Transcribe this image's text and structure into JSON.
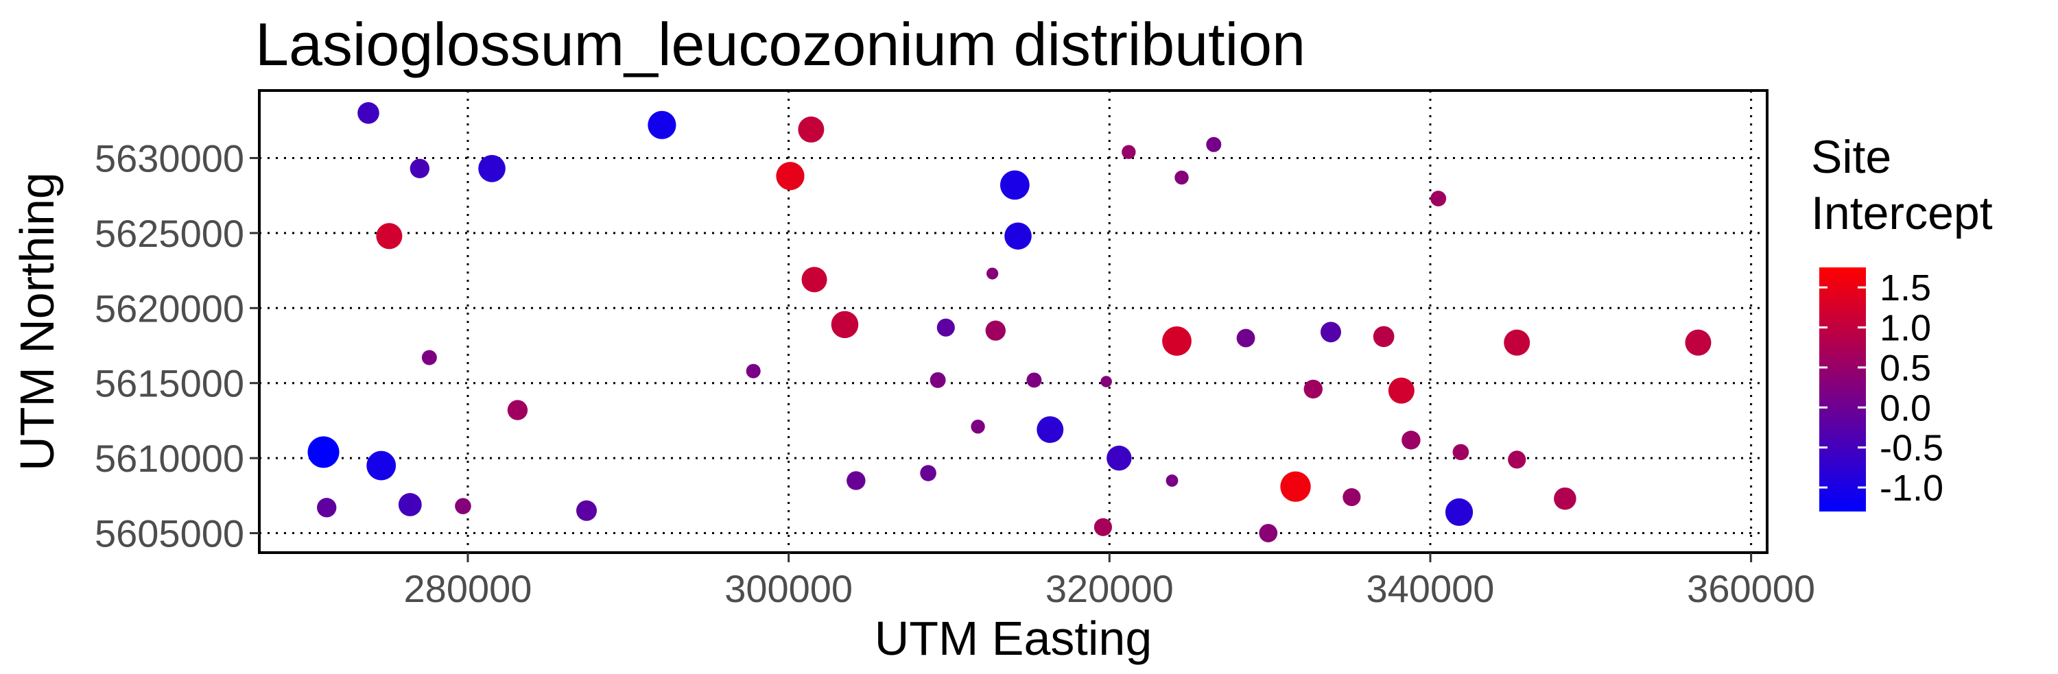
{
  "chart_data": {
    "type": "scatter",
    "title": "Lasioglossum_leucozonium distribution",
    "xlabel": "UTM Easting",
    "ylabel": "UTM Northing",
    "xlim": [
      267000,
      361000
    ],
    "ylim": [
      5603700,
      5634500
    ],
    "x_ticks": [
      280000,
      300000,
      320000,
      340000,
      360000
    ],
    "y_ticks": [
      5605000,
      5610000,
      5615000,
      5620000,
      5625000,
      5630000
    ],
    "x_tick_labels": [
      "280000",
      "300000",
      "320000",
      "340000",
      "360000"
    ],
    "y_tick_labels": [
      "5605000",
      "5610000",
      "5615000",
      "5620000",
      "5625000",
      "5630000"
    ],
    "grid": "dotted",
    "legend": {
      "title_lines": [
        "Site",
        "Intercept"
      ],
      "position": "right",
      "min": -1.3,
      "max": 1.75,
      "ticks": [
        1.5,
        1.0,
        0.5,
        0.0,
        -0.5,
        -1.0
      ],
      "tick_labels": [
        "1.5",
        "1.0",
        "0.5",
        "0.0",
        "-0.5",
        "-1.0"
      ],
      "colors": [
        "#0000ff",
        "#ff0000"
      ]
    },
    "points": [
      {
        "x": 273800,
        "y": 5633000,
        "v": -0.55,
        "size": 0.55
      },
      {
        "x": 277000,
        "y": 5629300,
        "v": -0.45,
        "size": 0.45
      },
      {
        "x": 281500,
        "y": 5629300,
        "v": -0.8,
        "size": 0.8
      },
      {
        "x": 292100,
        "y": 5632200,
        "v": -1.1,
        "size": 0.85
      },
      {
        "x": 301400,
        "y": 5631900,
        "v": 1.05,
        "size": 0.75
      },
      {
        "x": 300100,
        "y": 5628800,
        "v": 1.45,
        "size": 0.85
      },
      {
        "x": 314100,
        "y": 5628200,
        "v": -1.0,
        "size": 0.9
      },
      {
        "x": 321200,
        "y": 5630400,
        "v": 0.5,
        "size": 0.2
      },
      {
        "x": 326500,
        "y": 5630900,
        "v": 0.1,
        "size": 0.25
      },
      {
        "x": 324500,
        "y": 5628700,
        "v": 0.3,
        "size": 0.2
      },
      {
        "x": 340500,
        "y": 5627300,
        "v": 0.6,
        "size": 0.28
      },
      {
        "x": 275100,
        "y": 5624800,
        "v": 1.2,
        "size": 0.75
      },
      {
        "x": 314300,
        "y": 5624800,
        "v": -0.95,
        "size": 0.8
      },
      {
        "x": 301600,
        "y": 5621900,
        "v": 1.1,
        "size": 0.72
      },
      {
        "x": 312700,
        "y": 5622300,
        "v": 0.3,
        "size": 0.1
      },
      {
        "x": 303500,
        "y": 5618900,
        "v": 1.05,
        "size": 0.8
      },
      {
        "x": 309800,
        "y": 5618700,
        "v": -0.2,
        "size": 0.38
      },
      {
        "x": 312900,
        "y": 5618500,
        "v": 0.6,
        "size": 0.48
      },
      {
        "x": 324200,
        "y": 5617800,
        "v": 1.25,
        "size": 0.9
      },
      {
        "x": 328500,
        "y": 5618000,
        "v": 0.05,
        "size": 0.4
      },
      {
        "x": 333800,
        "y": 5618400,
        "v": -0.3,
        "size": 0.5
      },
      {
        "x": 337100,
        "y": 5618100,
        "v": 0.9,
        "size": 0.52
      },
      {
        "x": 345400,
        "y": 5617700,
        "v": 1.05,
        "size": 0.75
      },
      {
        "x": 356700,
        "y": 5617700,
        "v": 1.0,
        "size": 0.75
      },
      {
        "x": 277600,
        "y": 5616700,
        "v": 0.2,
        "size": 0.25
      },
      {
        "x": 297800,
        "y": 5615800,
        "v": 0.15,
        "size": 0.22
      },
      {
        "x": 309300,
        "y": 5615200,
        "v": 0.2,
        "size": 0.28
      },
      {
        "x": 315300,
        "y": 5615200,
        "v": 0.2,
        "size": 0.25
      },
      {
        "x": 319800,
        "y": 5615100,
        "v": 0.3,
        "size": 0.08
      },
      {
        "x": 332700,
        "y": 5614600,
        "v": 0.6,
        "size": 0.42
      },
      {
        "x": 338200,
        "y": 5614500,
        "v": 1.2,
        "size": 0.75
      },
      {
        "x": 283100,
        "y": 5613200,
        "v": 0.6,
        "size": 0.48
      },
      {
        "x": 311800,
        "y": 5612100,
        "v": 0.2,
        "size": 0.2
      },
      {
        "x": 316300,
        "y": 5611900,
        "v": -0.8,
        "size": 0.78
      },
      {
        "x": 338800,
        "y": 5611200,
        "v": 0.55,
        "size": 0.42
      },
      {
        "x": 271000,
        "y": 5610400,
        "v": -1.3,
        "size": 1.0
      },
      {
        "x": 274600,
        "y": 5609500,
        "v": -1.05,
        "size": 0.9
      },
      {
        "x": 320600,
        "y": 5610000,
        "v": -0.6,
        "size": 0.7
      },
      {
        "x": 341900,
        "y": 5610400,
        "v": 0.6,
        "size": 0.3
      },
      {
        "x": 345400,
        "y": 5609900,
        "v": 0.7,
        "size": 0.38
      },
      {
        "x": 304200,
        "y": 5608500,
        "v": -0.05,
        "size": 0.42
      },
      {
        "x": 308700,
        "y": 5609000,
        "v": -0.05,
        "size": 0.3
      },
      {
        "x": 323900,
        "y": 5608500,
        "v": 0.15,
        "size": 0.12
      },
      {
        "x": 331600,
        "y": 5608100,
        "v": 1.6,
        "size": 0.95
      },
      {
        "x": 271200,
        "y": 5606700,
        "v": -0.15,
        "size": 0.45
      },
      {
        "x": 276400,
        "y": 5606900,
        "v": -0.5,
        "size": 0.62
      },
      {
        "x": 279700,
        "y": 5606800,
        "v": 0.3,
        "size": 0.3
      },
      {
        "x": 287400,
        "y": 5606500,
        "v": -0.2,
        "size": 0.5
      },
      {
        "x": 335100,
        "y": 5607400,
        "v": 0.5,
        "size": 0.38
      },
      {
        "x": 341800,
        "y": 5606400,
        "v": -0.85,
        "size": 0.82
      },
      {
        "x": 348400,
        "y": 5607300,
        "v": 0.8,
        "size": 0.58
      },
      {
        "x": 319600,
        "y": 5605400,
        "v": 0.7,
        "size": 0.38
      },
      {
        "x": 329900,
        "y": 5605000,
        "v": 0.35,
        "size": 0.4
      }
    ]
  }
}
